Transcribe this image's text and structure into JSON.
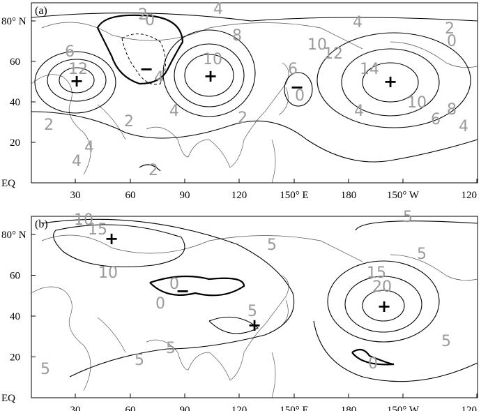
{
  "panels": [
    {
      "label": "(a)",
      "contour_labels": [
        "0",
        "2",
        "4",
        "8",
        "6",
        "12",
        "10",
        "6",
        "10",
        "12",
        "14",
        "10",
        "6",
        "8",
        "4",
        "4",
        "4",
        "2",
        "2",
        "4",
        "2",
        "4",
        "2",
        "2",
        "0",
        "4",
        "0",
        "4"
      ],
      "signs": [
        "+",
        "+",
        "+",
        "−",
        "−"
      ]
    },
    {
      "label": "(b)",
      "contour_labels": [
        "10",
        "15",
        "10",
        "5",
        "5",
        "5",
        "15",
        "20",
        "0",
        "0",
        "5",
        "5",
        "5",
        "5",
        "5",
        "0"
      ],
      "signs": [
        "+",
        "+",
        "+",
        "−"
      ]
    }
  ],
  "x_tick_labels": [
    "30",
    "60",
    "90",
    "120",
    "150° E",
    "180",
    "150° W",
    "120"
  ],
  "y_tick_labels": [
    "EQ",
    "20",
    "40",
    "60",
    "80° N"
  ]
}
